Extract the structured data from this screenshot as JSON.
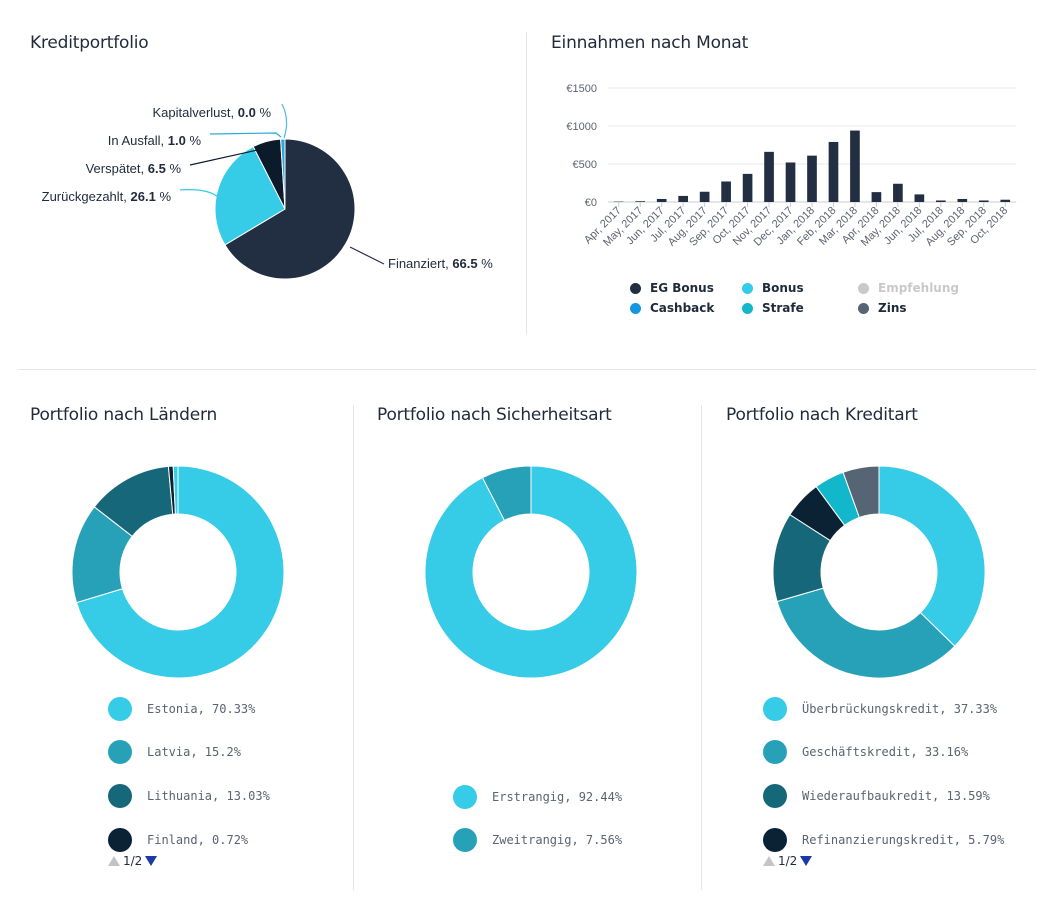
{
  "titles": {
    "kreditportfolio": "Kreditportfolio",
    "einnahmen": "Einnahmen nach Monat",
    "laender": "Portfolio nach Ländern",
    "sicherheit": "Portfolio nach Sicherheitsart",
    "kreditart": "Portfolio nach Kreditart"
  },
  "pager": {
    "laender": "1/2",
    "kreditart": "1/2"
  },
  "chart_data": [
    {
      "type": "pie",
      "title": "Kreditportfolio",
      "slices": [
        {
          "label": "Finanziert",
          "value": 66.5,
          "display": "66.5",
          "color": "#222f42"
        },
        {
          "label": "Zurückgezahlt",
          "value": 26.1,
          "display": "26.1",
          "color": "#36cbe6"
        },
        {
          "label": "Verspätet",
          "value": 6.5,
          "display": "6.5",
          "color": "#0b1b2c"
        },
        {
          "label": "In Ausfall",
          "value": 1.0,
          "display": "1.0",
          "color": "#2aa8d9"
        },
        {
          "label": "Kapitalverlust",
          "value": 0.0,
          "display": "0.0",
          "color": "#50b7e6"
        }
      ],
      "unit": "%"
    },
    {
      "type": "bar",
      "title": "Einnahmen nach Monat",
      "categories": [
        "Apr, 2017",
        "May, 2017",
        "Jun, 2017",
        "Jul, 2017",
        "Aug, 2017",
        "Sep, 2017",
        "Oct, 2017",
        "Nov, 2017",
        "Dec, 2017",
        "Jan, 2018",
        "Feb, 2018",
        "Mar, 2018",
        "Apr, 2018",
        "May, 2018",
        "Jun, 2018",
        "Jul, 2018",
        "Aug, 2018",
        "Sep, 2018",
        "Oct, 2018"
      ],
      "values": [
        5,
        10,
        40,
        80,
        135,
        270,
        370,
        660,
        520,
        610,
        790,
        940,
        130,
        240,
        100,
        20,
        40,
        20,
        30
      ],
      "yticks": [
        "€0",
        "€500",
        "€1000",
        "€1500"
      ],
      "ylim": [
        0,
        1500
      ],
      "legend": [
        {
          "name": "EG Bonus",
          "color": "#222f42"
        },
        {
          "name": "Bonus",
          "color": "#36cbe6"
        },
        {
          "name": "Empfehlung",
          "color": "#c9c9c9"
        },
        {
          "name": "Cashback",
          "color": "#1497e0"
        },
        {
          "name": "Strafe",
          "color": "#13b7cc"
        },
        {
          "name": "Zins",
          "color": "#566573"
        }
      ]
    },
    {
      "type": "pie",
      "title": "Portfolio nach Ländern",
      "slices": [
        {
          "label": "Estonia",
          "value": 70.33,
          "display": "70.33%",
          "color": "#36cbe6"
        },
        {
          "label": "Latvia",
          "value": 15.2,
          "display": "15.2%",
          "color": "#27a1b8"
        },
        {
          "label": "Lithuania",
          "value": 13.03,
          "display": "13.03%",
          "color": "#17677a"
        },
        {
          "label": "Finland",
          "value": 0.72,
          "display": "0.72%",
          "color": "#0b2235"
        },
        {
          "label": "",
          "value": 0.72,
          "display": "",
          "color": "#36cbe6"
        }
      ]
    },
    {
      "type": "pie",
      "title": "Portfolio nach Sicherheitsart",
      "slices": [
        {
          "label": "Erstrangig",
          "value": 92.44,
          "display": "92.44%",
          "color": "#36cbe6"
        },
        {
          "label": "Zweitrangig",
          "value": 7.56,
          "display": "7.56%",
          "color": "#27a1b8"
        }
      ]
    },
    {
      "type": "pie",
      "title": "Portfolio nach Kreditart",
      "slices": [
        {
          "label": "Überbrückungskredit",
          "value": 37.33,
          "display": "37.33%",
          "color": "#36cbe6"
        },
        {
          "label": "Geschäftskredit",
          "value": 33.16,
          "display": "33.16%",
          "color": "#27a1b8"
        },
        {
          "label": "Wiederaufbaukredit",
          "value": 13.59,
          "display": "13.59%",
          "color": "#17677a"
        },
        {
          "label": "Refinanzierungskredit",
          "value": 5.79,
          "display": "5.79%",
          "color": "#0b2235"
        },
        {
          "label": "",
          "value": 4.6,
          "display": "",
          "color": "#13b7cc"
        },
        {
          "label": "",
          "value": 5.5,
          "display": "",
          "color": "#566573"
        }
      ]
    }
  ]
}
